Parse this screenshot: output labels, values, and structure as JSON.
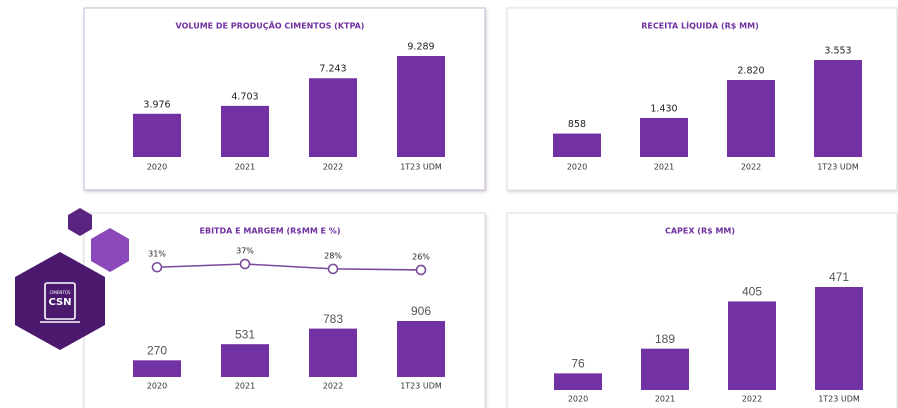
{
  "chart_data": [
    {
      "type": "bar",
      "title": "VOLUME DE PRODUÇÃO CIMENTOS (KTPA)",
      "categories": [
        "2020",
        "2021",
        "2022",
        "1T23 UDM"
      ],
      "values": [
        3976,
        4703,
        7243,
        9289
      ],
      "value_labels": [
        "3.976",
        "4.703",
        "7.243",
        "9.289"
      ],
      "color": "#7232a3"
    },
    {
      "type": "bar",
      "title": "RECEITA LÍQUIDA (R$ MM)",
      "categories": [
        "2020",
        "2021",
        "2022",
        "1T23 UDM"
      ],
      "values": [
        858,
        1430,
        2820,
        3553
      ],
      "value_labels": [
        "858",
        "1.430",
        "2.820",
        "3.553"
      ],
      "color": "#7232a3"
    },
    {
      "type": "combo",
      "title": "EBITDA E MARGEM (R$MM E %)",
      "categories": [
        "2020",
        "2021",
        "2022",
        "1T23 UDM"
      ],
      "series": [
        {
          "type": "bar",
          "color": "#7232a3",
          "values": [
            270,
            531,
            783,
            906
          ]
        },
        {
          "type": "line",
          "color": "#7a4a9c",
          "values": [
            31,
            37,
            28,
            26
          ],
          "value_labels": [
            "31%",
            "37%",
            "28%",
            "26%"
          ]
        }
      ]
    },
    {
      "type": "bar",
      "title": "CAPEX (R$ MM)",
      "categories": [
        "2020",
        "2021",
        "2022",
        "1T23 UDM"
      ],
      "values": [
        76,
        189,
        405,
        471
      ],
      "color": "#7232a3"
    }
  ],
  "logo": {
    "top": "CIMENTOS",
    "main": "CSN"
  }
}
